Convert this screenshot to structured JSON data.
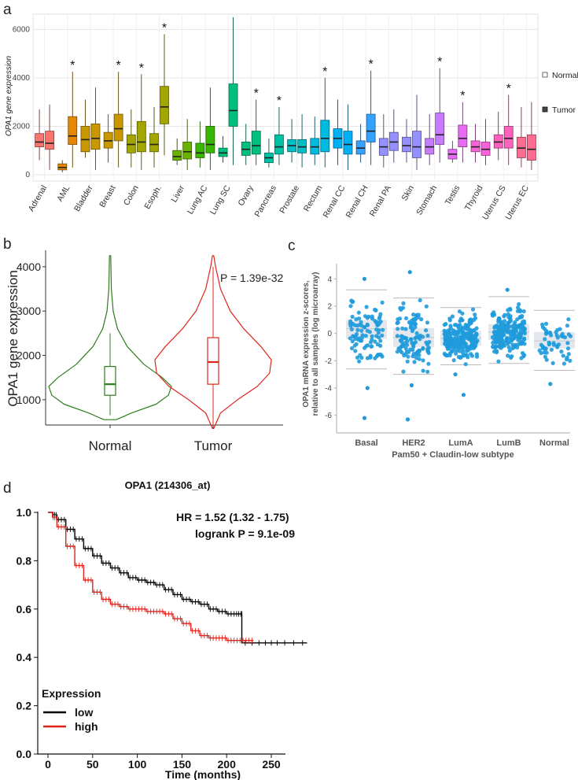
{
  "panel_labels": {
    "a": "a",
    "b": "b",
    "c": "c",
    "d": "d"
  },
  "chart_data": [
    {
      "id": "a",
      "type": "box",
      "ylabel": "OPA1 gene expression",
      "ylim": [
        0,
        6500
      ],
      "yticks": [
        0,
        2000,
        4000,
        6000
      ],
      "legend": {
        "position": "right",
        "entries": [
          "Normal",
          "Tumor"
        ]
      },
      "groups": [
        {
          "name": "Adrenal",
          "color": "#F8766D",
          "sig": false,
          "normal": {
            "min": 600,
            "q1": 1150,
            "med": 1350,
            "q3": 1700,
            "max": 2700
          },
          "tumor": {
            "min": 200,
            "q1": 1050,
            "med": 1300,
            "q3": 1800,
            "max": 2900
          }
        },
        {
          "name": "AML",
          "color": "#E58700",
          "sig": true,
          "normal": {
            "min": 100,
            "q1": 200,
            "med": 300,
            "q3": 450,
            "max": 600
          },
          "tumor": {
            "min": 300,
            "q1": 1250,
            "med": 1600,
            "q3": 2400,
            "max": 4250
          }
        },
        {
          "name": "Bladder",
          "color": "#C99800",
          "sig": false,
          "normal": {
            "min": 700,
            "q1": 950,
            "med": 1450,
            "q3": 2000,
            "max": 3100
          },
          "tumor": {
            "min": 200,
            "q1": 1050,
            "med": 1500,
            "q3": 2100,
            "max": 3600
          }
        },
        {
          "name": "Breast",
          "color": "#C99800",
          "sig": true,
          "normal": {
            "min": 500,
            "q1": 1100,
            "med": 1400,
            "q3": 1750,
            "max": 2500
          },
          "tumor": {
            "min": 300,
            "q1": 1400,
            "med": 1900,
            "q3": 2500,
            "max": 4250
          }
        },
        {
          "name": "Colon",
          "color": "#A3A500",
          "sig": true,
          "normal": {
            "min": 300,
            "q1": 900,
            "med": 1250,
            "q3": 1650,
            "max": 2700
          },
          "tumor": {
            "min": 200,
            "q1": 950,
            "med": 1350,
            "q3": 2200,
            "max": 4150
          }
        },
        {
          "name": "Esoph.",
          "color": "#A3A500",
          "sig": true,
          "normal": {
            "min": 300,
            "q1": 950,
            "med": 1250,
            "q3": 1700,
            "max": 2800
          },
          "tumor": {
            "min": 800,
            "q1": 2100,
            "med": 2800,
            "q3": 3650,
            "max": 5800
          }
        },
        {
          "name": "Liver",
          "color": "#6BB100",
          "sig": false,
          "normal": {
            "min": 400,
            "q1": 600,
            "med": 750,
            "q3": 1000,
            "max": 1500
          },
          "tumor": {
            "min": 200,
            "q1": 650,
            "med": 950,
            "q3": 1350,
            "max": 2300
          }
        },
        {
          "name": "Lung AC",
          "color": "#39B600",
          "sig": false,
          "normal": {
            "min": 300,
            "q1": 700,
            "med": 900,
            "q3": 1300,
            "max": 2200
          },
          "tumor": {
            "min": 200,
            "q1": 900,
            "med": 1250,
            "q3": 2000,
            "max": 3600
          }
        },
        {
          "name": "Lung SC",
          "color": "#00BF7D",
          "sig": false,
          "normal": {
            "min": 500,
            "q1": 750,
            "med": 900,
            "q3": 1100,
            "max": 1600
          },
          "tumor": {
            "min": 400,
            "q1": 2000,
            "med": 2650,
            "q3": 3750,
            "max": 6500
          }
        },
        {
          "name": "Ovary",
          "color": "#00BF7D",
          "sig": true,
          "normal": {
            "min": 400,
            "q1": 800,
            "med": 1050,
            "q3": 1350,
            "max": 2100
          },
          "tumor": {
            "min": 400,
            "q1": 850,
            "med": 1200,
            "q3": 1800,
            "max": 3100
          }
        },
        {
          "name": "Pancreas",
          "color": "#00C1A3",
          "sig": true,
          "normal": {
            "min": 300,
            "q1": 500,
            "med": 700,
            "q3": 900,
            "max": 1500
          },
          "tumor": {
            "min": 400,
            "q1": 850,
            "med": 1150,
            "q3": 1650,
            "max": 2800
          }
        },
        {
          "name": "Prostate",
          "color": "#00BFC4",
          "sig": false,
          "normal": {
            "min": 500,
            "q1": 950,
            "med": 1200,
            "q3": 1450,
            "max": 2300
          },
          "tumor": {
            "min": 300,
            "q1": 900,
            "med": 1150,
            "q3": 1450,
            "max": 2500
          }
        },
        {
          "name": "Rectum",
          "color": "#00BAE0",
          "sig": true,
          "normal": {
            "min": 400,
            "q1": 850,
            "med": 1150,
            "q3": 1500,
            "max": 2400
          },
          "tumor": {
            "min": 300,
            "q1": 950,
            "med": 1500,
            "q3": 2250,
            "max": 4000
          }
        },
        {
          "name": "Renal CC",
          "color": "#00B0F6",
          "sig": false,
          "normal": {
            "min": 400,
            "q1": 1100,
            "med": 1500,
            "q3": 1900,
            "max": 3100
          },
          "tumor": {
            "min": 200,
            "q1": 850,
            "med": 1250,
            "q3": 1800,
            "max": 2900
          }
        },
        {
          "name": "Renal CH",
          "color": "#35A2FF",
          "sig": true,
          "normal": {
            "min": 500,
            "q1": 850,
            "med": 1100,
            "q3": 1400,
            "max": 2100
          },
          "tumor": {
            "min": 400,
            "q1": 1350,
            "med": 1800,
            "q3": 2500,
            "max": 4300
          }
        },
        {
          "name": "Renal PA",
          "color": "#9590FF",
          "sig": false,
          "normal": {
            "min": 300,
            "q1": 800,
            "med": 1150,
            "q3": 1500,
            "max": 2500
          },
          "tumor": {
            "min": 500,
            "q1": 1000,
            "med": 1350,
            "q3": 1750,
            "max": 2700
          }
        },
        {
          "name": "Skin",
          "color": "#9590FF",
          "sig": false,
          "normal": {
            "min": 500,
            "q1": 950,
            "med": 1200,
            "q3": 1550,
            "max": 2300
          },
          "tumor": {
            "min": 200,
            "q1": 700,
            "med": 1150,
            "q3": 1800,
            "max": 3300
          }
        },
        {
          "name": "Stomach",
          "color": "#C77CFF",
          "sig": true,
          "normal": {
            "min": 400,
            "q1": 850,
            "med": 1150,
            "q3": 1500,
            "max": 2500
          },
          "tumor": {
            "min": 500,
            "q1": 1250,
            "med": 1650,
            "q3": 2550,
            "max": 4400
          }
        },
        {
          "name": "Testis",
          "color": "#E76BF3",
          "sig": true,
          "normal": {
            "min": 500,
            "q1": 650,
            "med": 850,
            "q3": 1050,
            "max": 1400
          },
          "tumor": {
            "min": 500,
            "q1": 1150,
            "med": 1500,
            "q3": 2050,
            "max": 3000
          }
        },
        {
          "name": "Thyroid",
          "color": "#FA62DB",
          "sig": false,
          "normal": {
            "min": 500,
            "q1": 950,
            "med": 1150,
            "q3": 1400,
            "max": 2100
          },
          "tumor": {
            "min": 400,
            "q1": 800,
            "med": 1050,
            "q3": 1350,
            "max": 2300
          }
        },
        {
          "name": "Uterus CS",
          "color": "#FF62BC",
          "sig": true,
          "normal": {
            "min": 600,
            "q1": 1100,
            "med": 1350,
            "q3": 1650,
            "max": 2600
          },
          "tumor": {
            "min": 400,
            "q1": 1100,
            "med": 1500,
            "q3": 2000,
            "max": 3300
          }
        },
        {
          "name": "Uterus EC",
          "color": "#FF6C91",
          "sig": false,
          "normal": {
            "min": 300,
            "q1": 700,
            "med": 1100,
            "q3": 1550,
            "max": 2800
          },
          "tumor": {
            "min": 200,
            "q1": 600,
            "med": 1050,
            "q3": 1650,
            "max": 3000
          }
        }
      ]
    },
    {
      "id": "b",
      "type": "violin",
      "ylabel": "OPA1 gene expression",
      "ylim": [
        500,
        4300
      ],
      "yticks": [
        1000,
        2000,
        3000,
        4000
      ],
      "categories": [
        "Normal",
        "Tumor"
      ],
      "annotation": "P = 1.39e-32",
      "series": [
        {
          "name": "Normal",
          "color": "#2E7D1E",
          "min": 550,
          "q1": 1100,
          "med": 1350,
          "q3": 1750,
          "max": 4250,
          "whisker_lo": 650,
          "whisker_hi": 2500,
          "density": [
            [
              550,
              0.1
            ],
            [
              700,
              0.35
            ],
            [
              900,
              0.75
            ],
            [
              1100,
              0.95
            ],
            [
              1300,
              1.0
            ],
            [
              1500,
              0.85
            ],
            [
              1800,
              0.55
            ],
            [
              2200,
              0.28
            ],
            [
              2600,
              0.12
            ],
            [
              3000,
              0.05
            ],
            [
              3500,
              0.02
            ],
            [
              4250,
              0.01
            ]
          ]
        },
        {
          "name": "Tumor",
          "color": "#E0241B",
          "min": 350,
          "q1": 1350,
          "med": 1850,
          "q3": 2400,
          "max": 4250,
          "whisker_lo": 450,
          "whisker_hi": 4000,
          "density": [
            [
              350,
              0.01
            ],
            [
              700,
              0.12
            ],
            [
              1000,
              0.4
            ],
            [
              1300,
              0.72
            ],
            [
              1600,
              0.92
            ],
            [
              1900,
              0.95
            ],
            [
              2200,
              0.78
            ],
            [
              2600,
              0.5
            ],
            [
              3000,
              0.28
            ],
            [
              3500,
              0.12
            ],
            [
              4000,
              0.04
            ],
            [
              4250,
              0.01
            ]
          ]
        }
      ]
    },
    {
      "id": "c",
      "type": "strip",
      "ylabel_line1": "OPA1 mRNA expression z-scores,",
      "ylabel_line2": "relative to all samples (log microarray)",
      "ylabel_italic": "OPA1",
      "xlabel": "Pam50 + Claudin-low subtype",
      "ylim": [
        -7,
        5
      ],
      "yticks": [
        -6,
        -4,
        -2,
        0,
        2,
        4
      ],
      "categories": [
        "Basal",
        "HER2",
        "LumA",
        "LumB",
        "Normal"
      ],
      "point_color": "#1F9BDC",
      "groups": [
        {
          "name": "Basal",
          "n": 190,
          "mean": 0.35,
          "sd": 1.2,
          "q1": -0.4,
          "med": 0.35,
          "q3": 1.0,
          "lo": -2.6,
          "hi": 3.2,
          "outliers": [
            -6.2,
            -4.0,
            4.0
          ]
        },
        {
          "name": "HER2",
          "n": 230,
          "mean": -0.3,
          "sd": 1.25,
          "q1": -1.0,
          "med": -0.3,
          "q3": 0.4,
          "lo": -3.0,
          "hi": 2.6,
          "outliers": [
            -6.3,
            -3.8,
            4.5
          ]
        },
        {
          "name": "LumA",
          "n": 480,
          "mean": -0.35,
          "sd": 0.95,
          "q1": -0.9,
          "med": -0.35,
          "q3": 0.2,
          "lo": -2.3,
          "hi": 1.9,
          "outliers": [
            -4.5,
            -3.0
          ]
        },
        {
          "name": "LumB",
          "n": 420,
          "mean": 0.1,
          "sd": 1.0,
          "q1": -0.5,
          "med": 0.1,
          "q3": 0.7,
          "lo": -2.2,
          "hi": 2.7,
          "outliers": [
            3.2
          ]
        },
        {
          "name": "Normal",
          "n": 110,
          "mean": -0.55,
          "sd": 0.95,
          "q1": -1.1,
          "med": -0.55,
          "q3": 0.1,
          "lo": -2.7,
          "hi": 1.7,
          "outliers": [
            -3.7
          ]
        }
      ]
    },
    {
      "id": "d",
      "type": "line",
      "title": "OPA1 (214306_at)",
      "hr_text": "HR = 1.52 (1.32 -  1.75)",
      "logrank_text": "logrank P = 9.1e-09",
      "xlabel": "Time (months)",
      "xlim": [
        0,
        250
      ],
      "xticks": [
        0,
        50,
        100,
        150,
        200,
        250
      ],
      "ylim": [
        0,
        1.0
      ],
      "yticks": [
        "0.0",
        "0.2",
        "0.4",
        "0.6",
        "0.8",
        "1.0"
      ],
      "legend": {
        "title": "Expression",
        "position": "bottom-left",
        "entries": [
          "low",
          "high"
        ]
      },
      "series": [
        {
          "name": "low",
          "color": "#000000",
          "x": [
            0,
            5,
            10,
            20,
            30,
            40,
            50,
            60,
            70,
            80,
            90,
            100,
            110,
            120,
            130,
            140,
            150,
            160,
            170,
            180,
            190,
            200,
            210,
            217,
            217,
            240,
            260,
            290
          ],
          "y": [
            1.0,
            0.99,
            0.97,
            0.93,
            0.89,
            0.85,
            0.82,
            0.79,
            0.77,
            0.75,
            0.73,
            0.72,
            0.71,
            0.7,
            0.68,
            0.66,
            0.64,
            0.63,
            0.62,
            0.6,
            0.59,
            0.58,
            0.58,
            0.58,
            0.46,
            0.46,
            0.46,
            0.46
          ]
        },
        {
          "name": "high",
          "color": "#E0241B",
          "x": [
            0,
            5,
            10,
            20,
            30,
            40,
            50,
            60,
            70,
            80,
            90,
            100,
            110,
            120,
            130,
            140,
            150,
            160,
            170,
            180,
            190,
            200,
            210,
            220,
            230
          ],
          "y": [
            1.0,
            0.98,
            0.94,
            0.86,
            0.78,
            0.72,
            0.67,
            0.64,
            0.62,
            0.61,
            0.6,
            0.6,
            0.59,
            0.59,
            0.58,
            0.56,
            0.54,
            0.51,
            0.49,
            0.48,
            0.48,
            0.47,
            0.47,
            0.47,
            0.47
          ]
        }
      ]
    }
  ]
}
